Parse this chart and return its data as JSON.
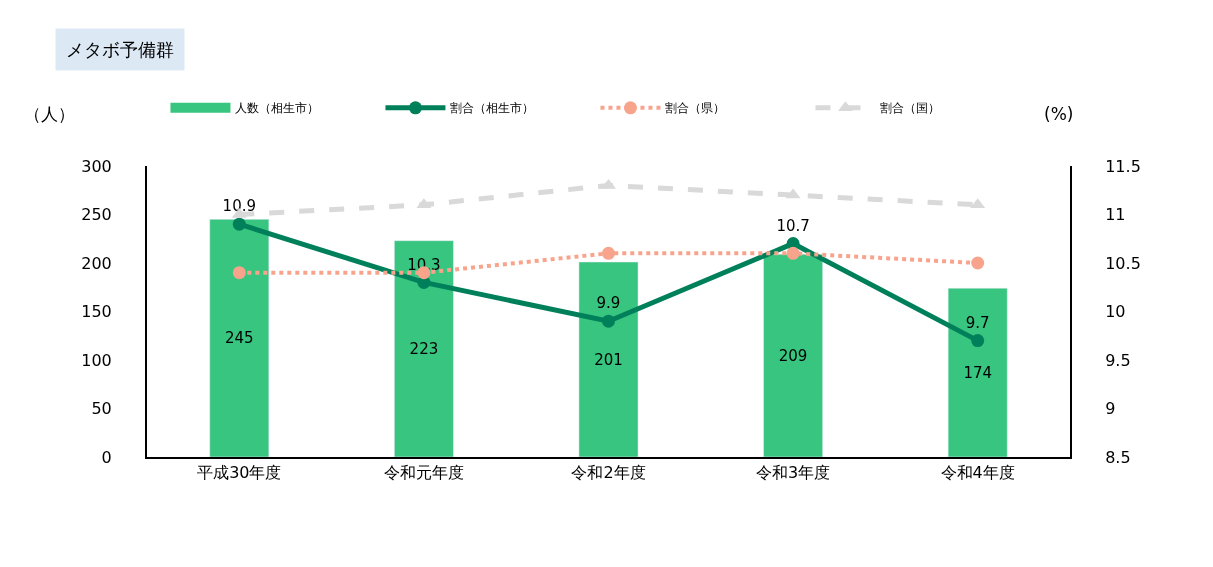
{
  "chart_data": {
    "type": "bar",
    "title": "メタボ予備群",
    "ylabel": "（人）",
    "y2label": "(%)",
    "categories": [
      "平成30年度",
      "令和元年度",
      "令和2年度",
      "令和3年度",
      "令和4年度"
    ],
    "series": [
      {
        "name": "人数（相生市）",
        "type": "bar",
        "color": "#37c57f",
        "values": [
          245,
          223,
          201,
          209,
          174
        ],
        "value_labels": [
          "245",
          "223",
          "201",
          "209",
          "174"
        ]
      },
      {
        "name": "割合（相生市）",
        "type": "line",
        "axis": "y2",
        "color": "#00805a",
        "marker": "circle",
        "line_style": "solid",
        "values": [
          10.9,
          10.3,
          9.9,
          10.7,
          9.7
        ],
        "value_labels": [
          "10.9",
          "10.3",
          "9.9",
          "10.7",
          "9.7"
        ]
      },
      {
        "name": "割合（県）",
        "type": "line",
        "axis": "y2",
        "color": "#f8a48c",
        "marker": "circle",
        "line_style": "dotted",
        "values": [
          10.4,
          10.4,
          10.6,
          10.6,
          10.5
        ]
      },
      {
        "name": "割合（国）",
        "type": "line",
        "axis": "y2",
        "color": "#d9d9d9",
        "marker": "triangle",
        "line_style": "dashed",
        "values": [
          11.0,
          11.1,
          11.3,
          11.2,
          11.1
        ]
      }
    ],
    "ylim": [
      0,
      300
    ],
    "yticks": [
      0,
      50,
      100,
      150,
      200,
      250,
      300
    ],
    "y2lim": [
      8.5,
      11.5
    ],
    "y2ticks": [
      8.5,
      9,
      9.5,
      10,
      10.5,
      11,
      11.5
    ],
    "legend": "top"
  }
}
